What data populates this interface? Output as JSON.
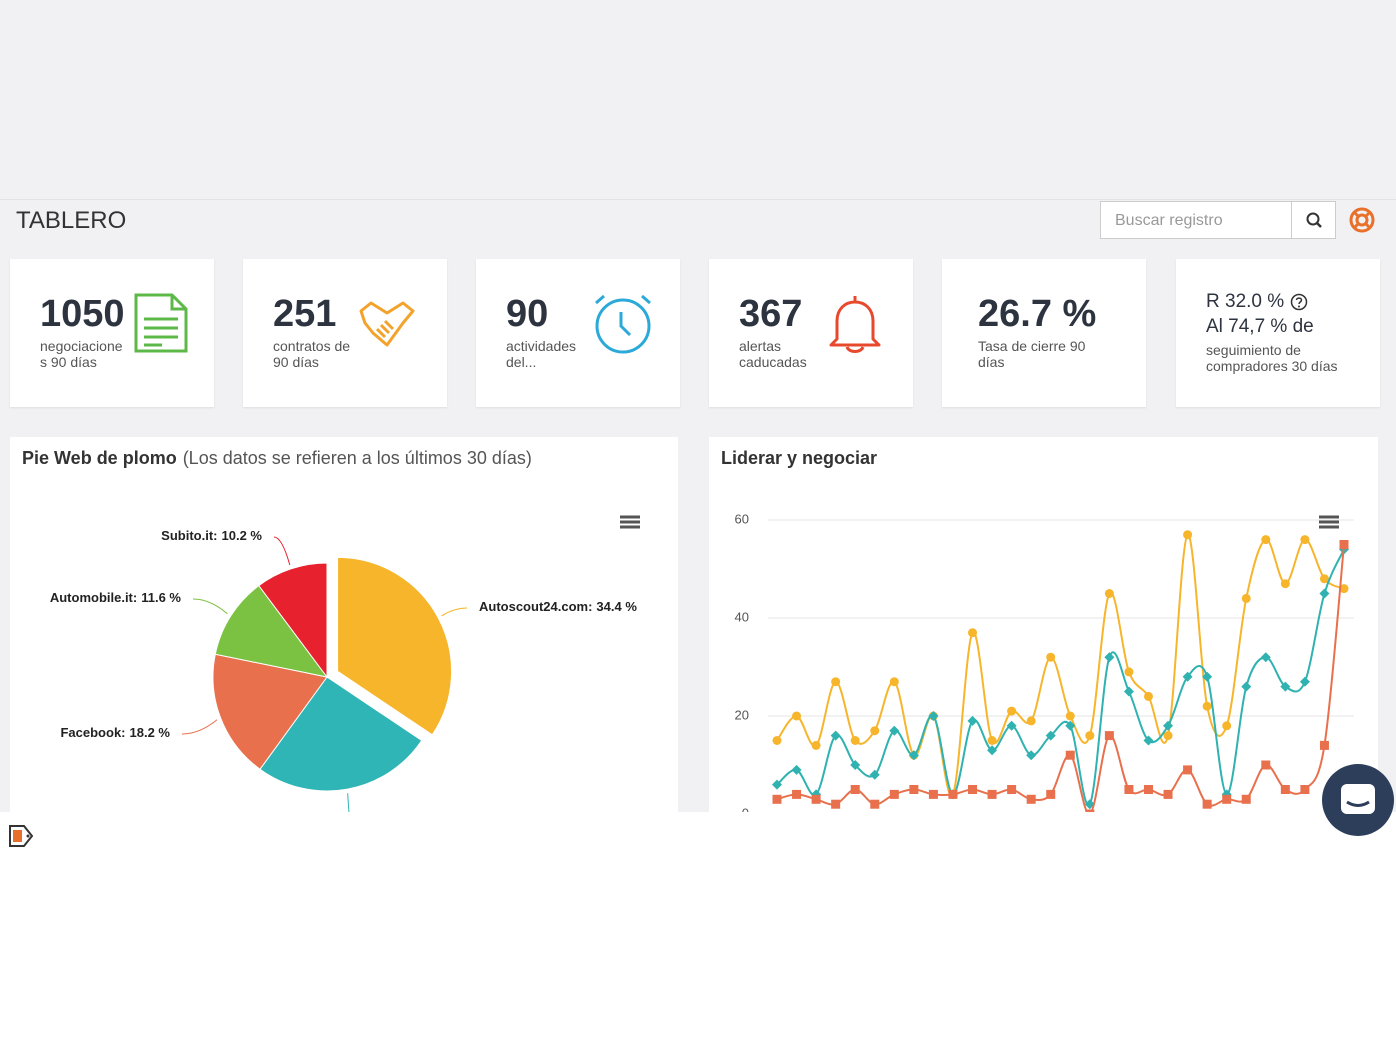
{
  "header": {
    "title": "TABLERO",
    "search_placeholder": "Buscar registro"
  },
  "kpis": [
    {
      "value": "1050",
      "label": "negociaciones 90 días"
    },
    {
      "value": "251",
      "label": "contratos de 90 días"
    },
    {
      "value": "90",
      "label": "actividades del..."
    },
    {
      "value": "367",
      "label": "alertas caducadas"
    },
    {
      "value": "26.7 %",
      "label": "Tasa de cierre 90 días"
    },
    {
      "value": "R 32.0 %",
      "value2": "Al 74,7 % de",
      "label": "seguimiento de compradores 30 días"
    }
  ],
  "chart_data": [
    {
      "type": "pie",
      "title": "Pie Web de plomo",
      "subtitle": "(Los datos se refieren a los últimos 30 días)",
      "categories": [
        "Autoscout24.com",
        null,
        "Facebook",
        "Automobile.it",
        "Subito.it"
      ],
      "values": [
        34.4,
        25.6,
        18.2,
        11.6,
        10.2
      ],
      "value_labels": [
        "34.4 %",
        null,
        "18.2 %",
        "11.6 %",
        "10.2 %"
      ],
      "label_separator": ":",
      "colors": [
        "#f7b52c",
        "#2fb5b5",
        "#e8704d",
        "#7cc242",
        "#e8212e"
      ]
    },
    {
      "type": "line",
      "title": "Liderar y negociar",
      "ylim": [
        0,
        60
      ],
      "yticks": [
        0,
        20,
        40,
        60
      ],
      "grid": true,
      "series": [
        {
          "color": "#f7b52c",
          "marker": "circle",
          "values": [
            15,
            20,
            14,
            27,
            15,
            17,
            27,
            12,
            20,
            4,
            37,
            15,
            21,
            19,
            32,
            20,
            16,
            45,
            29,
            24,
            16,
            57,
            22,
            18,
            44,
            56,
            47,
            56,
            48,
            46
          ]
        },
        {
          "color": "#2fb2b0",
          "marker": "diamond",
          "values": [
            6,
            9,
            4,
            16,
            10,
            8,
            17,
            12,
            20,
            4,
            19,
            13,
            18,
            12,
            16,
            18,
            2,
            32,
            25,
            15,
            18,
            28,
            28,
            4,
            26,
            32,
            26,
            27,
            45,
            54
          ]
        },
        {
          "color": "#e8704d",
          "marker": "square",
          "values": [
            3,
            4,
            3,
            2,
            5,
            2,
            4,
            5,
            4,
            4,
            5,
            4,
            5,
            3,
            4,
            12,
            0,
            16,
            5,
            5,
            4,
            9,
            2,
            3,
            3,
            10,
            5,
            5,
            14,
            55
          ]
        }
      ]
    }
  ]
}
